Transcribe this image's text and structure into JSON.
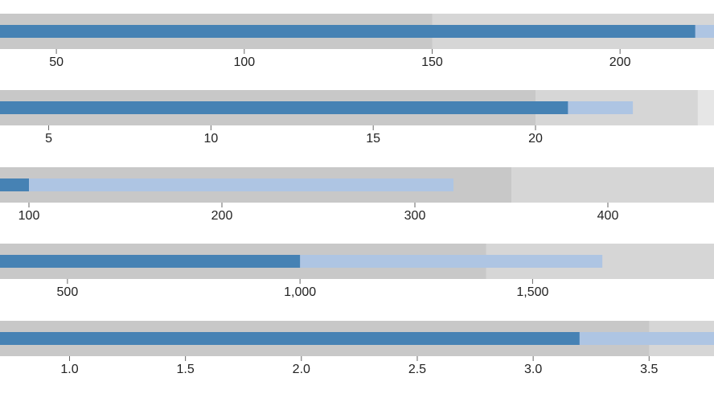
{
  "chart_data": {
    "type": "bullet",
    "colors": {
      "range_dark": "#c8c8c8",
      "range_mid": "#d6d6d6",
      "range_light": "#e6e6e6",
      "measure_actual": "#4682b4",
      "measure_projected": "#aec5e3",
      "tick": "#666666",
      "label": "#222222"
    },
    "bullets": [
      {
        "domain": [
          35,
          225
        ],
        "ranges": [
          150,
          225,
          240
        ],
        "measures": [
          220,
          270
        ],
        "ticks": [
          50,
          100,
          150,
          200
        ],
        "tick_labels": [
          "50",
          "100",
          "150",
          "200"
        ]
      },
      {
        "domain": [
          3.5,
          25.5
        ],
        "ranges": [
          20,
          25,
          26
        ],
        "measures": [
          21,
          23
        ],
        "ticks": [
          5,
          10,
          15,
          20
        ],
        "tick_labels": [
          "5",
          "10",
          "15",
          "20"
        ]
      },
      {
        "domain": [
          85,
          455
        ],
        "ranges": [
          350,
          500,
          600
        ],
        "measures": [
          100,
          320
        ],
        "ticks": [
          100,
          200,
          300,
          400
        ],
        "tick_labels": [
          "100",
          "200",
          "300",
          "400"
        ]
      },
      {
        "domain": [
          355,
          1890
        ],
        "ranges": [
          1400,
          2000,
          2500
        ],
        "measures": [
          1000,
          1650
        ],
        "ticks": [
          500,
          1000,
          1500
        ],
        "tick_labels": [
          "500",
          "1,000",
          "1,500"
        ]
      },
      {
        "domain": [
          0.7,
          3.78
        ],
        "ranges": [
          3.5,
          4.25,
          5
        ],
        "measures": [
          3.2,
          4.0
        ],
        "ticks": [
          1.0,
          1.5,
          2.0,
          2.5,
          3.0,
          3.5
        ],
        "tick_labels": [
          "1.0",
          "1.5",
          "2.0",
          "2.5",
          "3.0",
          "3.5"
        ]
      }
    ]
  }
}
